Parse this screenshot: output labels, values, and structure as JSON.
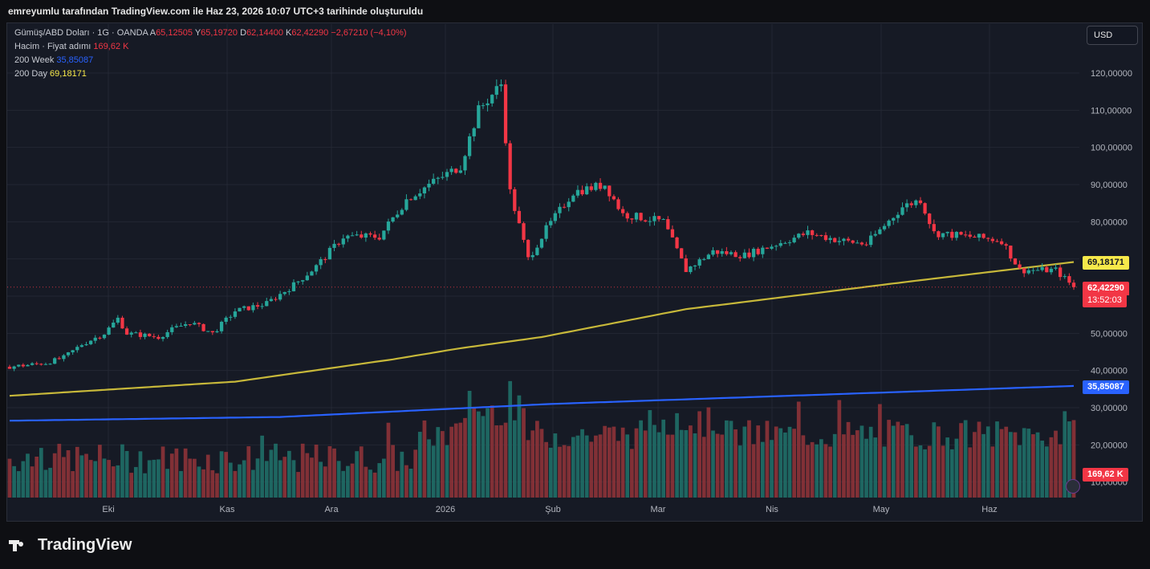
{
  "header": {
    "caption": "emreyumlu tarafından TradingView.com ile Haz 23, 2026 10:07 UTC+3 tarihinde oluşturuldu"
  },
  "legend": {
    "symbol": "Gümüş/ABD Doları · 1G · OANDA",
    "o_label": "A",
    "o_value": "65,12505",
    "h_label": "Y",
    "h_value": "65,19720",
    "l_label": "D",
    "l_value": "62,14400",
    "c_label": "K",
    "c_value": "62,42290",
    "change": "−2,67210 (−4,10%)",
    "volume_label": "Hacim · Fiyat adımı",
    "volume_value": "169,62 K",
    "ma200w_label": "200 Week",
    "ma200w_value": "35,85087",
    "ma200d_label": "200 Day",
    "ma200d_value": "69,18171"
  },
  "currency": "USD",
  "tags": {
    "ma200d": "69,18171",
    "price": "62,42290",
    "countdown": "13:52:03",
    "ma200w": "35,85087",
    "volume": "169,62 K"
  },
  "colors": {
    "up": "#26a69a",
    "down": "#f23645",
    "ma200d": "#c7b83a",
    "ma200w": "#2962ff",
    "background": "#161a25"
  },
  "brand": "TradingView",
  "chart_data": {
    "type": "candlestick",
    "ylim": [
      30,
      125
    ],
    "y_ticks": [
      "120,00000",
      "110,00000",
      "100,00000",
      "90,00000",
      "80,00000",
      "50,00000",
      "40,00000",
      "30,00000",
      "20,00000",
      "10,00000"
    ],
    "x_ticks": [
      "Eki",
      "Kas",
      "Ara",
      "2026",
      "Şub",
      "Mar",
      "Nis",
      "May",
      "Haz"
    ],
    "price_path": [
      [
        0,
        41
      ],
      [
        8,
        42
      ],
      [
        12,
        43.5
      ],
      [
        16,
        47
      ],
      [
        21,
        50
      ],
      [
        24,
        54
      ],
      [
        26,
        50
      ],
      [
        33,
        49
      ],
      [
        36,
        51
      ],
      [
        40,
        53
      ],
      [
        45,
        50
      ],
      [
        50,
        56
      ],
      [
        57,
        58
      ],
      [
        63,
        63
      ],
      [
        68,
        68
      ],
      [
        74,
        76
      ],
      [
        82,
        76
      ],
      [
        88,
        86
      ],
      [
        93,
        90
      ],
      [
        100,
        95
      ],
      [
        104,
        110
      ],
      [
        109,
        117
      ],
      [
        111,
        88
      ],
      [
        115,
        70
      ],
      [
        119,
        78
      ],
      [
        125,
        88
      ],
      [
        132,
        90
      ],
      [
        136,
        82
      ],
      [
        145,
        80
      ],
      [
        150,
        67
      ],
      [
        156,
        72
      ],
      [
        163,
        71
      ],
      [
        170,
        74
      ],
      [
        177,
        77
      ],
      [
        184,
        75
      ],
      [
        190,
        74
      ],
      [
        198,
        84
      ],
      [
        202,
        86
      ],
      [
        205,
        77
      ],
      [
        213,
        76
      ],
      [
        220,
        75
      ],
      [
        224,
        67
      ],
      [
        232,
        67
      ],
      [
        236,
        62.42
      ]
    ],
    "ma200d_path": [
      [
        0,
        33.2
      ],
      [
        50,
        37
      ],
      [
        85,
        43
      ],
      [
        100,
        46
      ],
      [
        118,
        49
      ],
      [
        150,
        56.5
      ],
      [
        200,
        64
      ],
      [
        236,
        69.18
      ]
    ],
    "ma200w_path": [
      [
        0,
        26.5
      ],
      [
        60,
        27.5
      ],
      [
        120,
        31
      ],
      [
        180,
        33.5
      ],
      [
        236,
        35.85
      ]
    ],
    "volume_scale_max": 40
  }
}
